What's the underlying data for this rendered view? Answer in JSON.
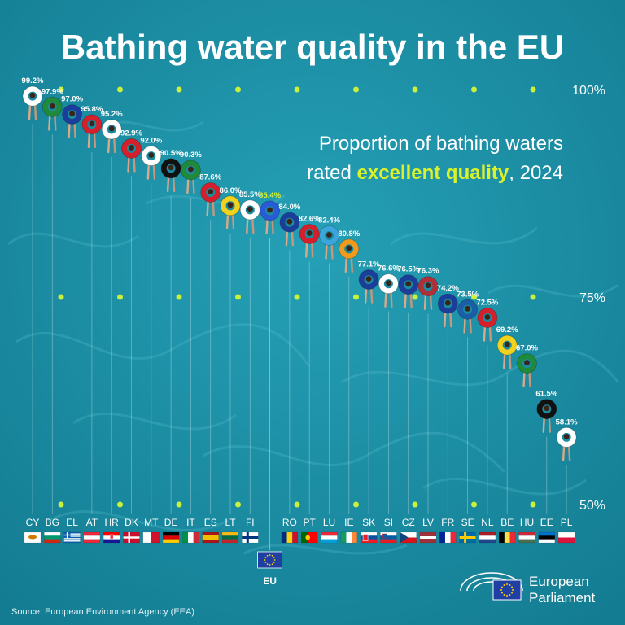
{
  "header": {
    "title": "Bathing water quality in the EU",
    "subtitle_line1": "Proportion of bathing waters",
    "subtitle_rated": "rated ",
    "subtitle_highlight": "excellent quality",
    "subtitle_year": ", 2024"
  },
  "footer": {
    "source": "Source: European Environment Agency (EEA)",
    "logo_line1": "European",
    "logo_line2": "Parliament"
  },
  "colors": {
    "background": "#1b8ba1",
    "highlight": "#d9f22c",
    "text": "#ffffff"
  },
  "chart_data": {
    "type": "scatter",
    "ylim": [
      50,
      100
    ],
    "yticks": [
      {
        "value": 100,
        "label": "100%"
      },
      {
        "value": 75,
        "label": "75%"
      },
      {
        "value": 50,
        "label": "50%"
      }
    ],
    "eu_average": {
      "code": "EU",
      "value": 85.4,
      "label": "85.4%"
    },
    "points": [
      {
        "code": "CY",
        "value": 99.2,
        "label": "99.2%",
        "ring": "#ffffff"
      },
      {
        "code": "BG",
        "value": 97.9,
        "label": "97.9%",
        "ring": "#1f8a3a"
      },
      {
        "code": "EL",
        "value": 97.0,
        "label": "97.0%",
        "ring": "#1a3e9a"
      },
      {
        "code": "AT",
        "value": 95.8,
        "label": "95.8%",
        "ring": "#d4202c"
      },
      {
        "code": "HR",
        "value": 95.2,
        "label": "95.2%",
        "ring": "#ffffff"
      },
      {
        "code": "DK",
        "value": 92.9,
        "label": "92.9%",
        "ring": "#d4202c"
      },
      {
        "code": "MT",
        "value": 92.0,
        "label": "92.0%",
        "ring": "#ffffff"
      },
      {
        "code": "DE",
        "value": 90.5,
        "label": "90.5%",
        "ring": "#111111"
      },
      {
        "code": "IT",
        "value": 90.3,
        "label": "90.3%",
        "ring": "#1f8a3a"
      },
      {
        "code": "ES",
        "value": 87.6,
        "label": "87.6%",
        "ring": "#d4202c"
      },
      {
        "code": "LT",
        "value": 86.0,
        "label": "86.0%",
        "ring": "#f2d21c"
      },
      {
        "code": "FI",
        "value": 85.5,
        "label": "85.5%",
        "ring": "#ffffff"
      },
      {
        "code": "RO",
        "value": 84.0,
        "label": "84.0%",
        "ring": "#1a3e9a"
      },
      {
        "code": "PT",
        "value": 82.6,
        "label": "82.6%",
        "ring": "#d4202c"
      },
      {
        "code": "LU",
        "value": 82.4,
        "label": "82.4%",
        "ring": "#3aa6dc"
      },
      {
        "code": "IE",
        "value": 80.8,
        "label": "80.8%",
        "ring": "#f29a1c"
      },
      {
        "code": "SK",
        "value": 77.1,
        "label": "77.1%",
        "ring": "#1a3e9a"
      },
      {
        "code": "SI",
        "value": 76.6,
        "label": "76.6%",
        "ring": "#ffffff"
      },
      {
        "code": "CZ",
        "value": 76.5,
        "label": "76.5%",
        "ring": "#1a3e9a"
      },
      {
        "code": "LV",
        "value": 76.3,
        "label": "76.3%",
        "ring": "#b0303a"
      },
      {
        "code": "FR",
        "value": 74.2,
        "label": "74.2%",
        "ring": "#1a3e9a"
      },
      {
        "code": "SE",
        "value": 73.5,
        "label": "73.5%",
        "ring": "#1a5ea8"
      },
      {
        "code": "NL",
        "value": 72.5,
        "label": "72.5%",
        "ring": "#d4202c"
      },
      {
        "code": "BE",
        "value": 69.2,
        "label": "69.2%",
        "ring": "#f2d21c"
      },
      {
        "code": "HU",
        "value": 67.0,
        "label": "67.0%",
        "ring": "#1f8a3a"
      },
      {
        "code": "EE",
        "value": 61.5,
        "label": "61.5%",
        "ring": "#111111"
      },
      {
        "code": "PL",
        "value": 58.1,
        "label": "58.1%",
        "ring": "#ffffff"
      }
    ]
  }
}
